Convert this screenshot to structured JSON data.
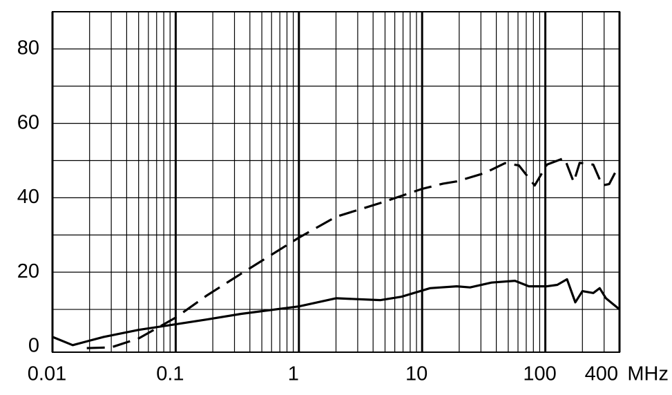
{
  "chart_data": {
    "type": "line",
    "xlabel": "MHz",
    "xscale": "log",
    "xlim": [
      0.01,
      400
    ],
    "ylim": [
      -1.5,
      90
    ],
    "xticks": [
      0.01,
      0.1,
      1,
      10,
      100,
      400
    ],
    "x_minor_ticks": [
      0.02,
      0.03,
      0.04,
      0.05,
      0.06,
      0.07,
      0.08,
      0.09,
      0.2,
      0.3,
      0.4,
      0.5,
      0.6,
      0.7,
      0.8,
      0.9,
      2,
      3,
      4,
      5,
      6,
      7,
      8,
      9,
      20,
      30,
      40,
      50,
      60,
      70,
      80,
      90,
      200,
      300
    ],
    "yticks": [
      0,
      20,
      40,
      60,
      80
    ],
    "ygrid": [
      10,
      20,
      30,
      40,
      50,
      60,
      70,
      80
    ],
    "grid": true,
    "series": [
      {
        "color": "#000000",
        "dashed": false,
        "x": [
          0.01,
          0.0146,
          0.026,
          0.05,
          0.1,
          0.18,
          0.34,
          1,
          2,
          4.6,
          6.8,
          11.6,
          19.1,
          24.5,
          36.6,
          56.7,
          73.5,
          103,
          125,
          150,
          175,
          200,
          245,
          276,
          310,
          400
        ],
        "values": [
          2.6,
          0.4,
          2.6,
          4.5,
          6,
          7.3,
          8.8,
          10.8,
          13,
          12.5,
          13.4,
          15.7,
          16.2,
          15.9,
          17.2,
          17.7,
          16.2,
          16.2,
          16.6,
          18.1,
          11.9,
          14.9,
          14.4,
          15.7,
          13,
          10
        ]
      },
      {
        "color": "#000000",
        "dashed": true,
        "x": [
          0.019,
          0.03,
          0.05,
          0.1,
          0.18,
          0.34,
          1,
          2,
          4.6,
          10,
          14.8,
          19.1,
          32,
          47,
          61,
          82,
          103,
          143,
          170,
          190,
          245,
          290,
          330,
          380
        ],
        "values": [
          -0.4,
          -0.2,
          2.2,
          7.8,
          13.8,
          19.6,
          29.3,
          34.9,
          38.6,
          42.4,
          43.8,
          44.4,
          46.6,
          49.3,
          48.7,
          43.3,
          48.9,
          50.7,
          44.2,
          49.4,
          48.9,
          43.3,
          43.7,
          47.6
        ]
      }
    ]
  }
}
